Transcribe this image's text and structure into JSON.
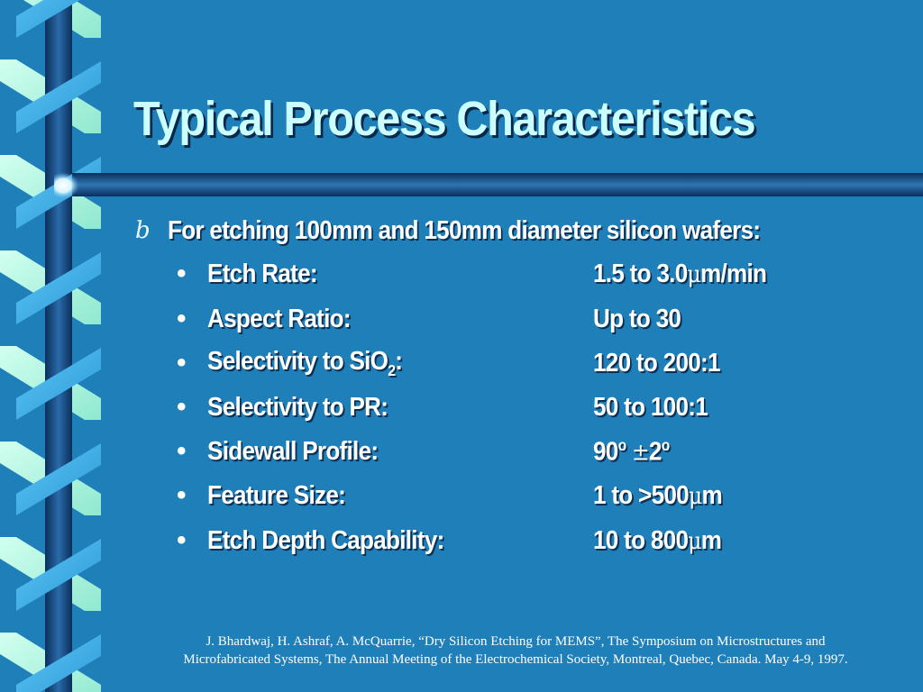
{
  "slide": {
    "title": "Typical Process Characteristics",
    "lead_bullet_symbol": "b",
    "lead_text": "For etching 100mm and 150mm diameter silicon wafers:",
    "bullet_symbol": "•",
    "items": [
      {
        "label": "Etch Rate:",
        "value": "1.5 to 3.0",
        "unit_symbol": "μ",
        "unit_tail": "m/min"
      },
      {
        "label": "Aspect Ratio:",
        "value": "Up to 30"
      },
      {
        "label_main": "Selectivity to SiO",
        "label_sub": "2",
        "label_tail": ":",
        "value": "120 to 200:1"
      },
      {
        "label": "Selectivity to PR:",
        "value": "50 to 100:1"
      },
      {
        "label": "Sidewall Profile:",
        "value_a": "90",
        "value_a_sup": "o",
        "pm_symbol": "±",
        "value_b": "2",
        "value_b_sup": "o"
      },
      {
        "label": "Feature Size:",
        "value": "1 to >500",
        "unit_symbol": "μ",
        "unit_tail": "m"
      },
      {
        "label": "Etch Depth Capability:",
        "value": "10 to 800",
        "unit_symbol": "μ",
        "unit_tail": "m"
      }
    ],
    "reference_line1": "J. Bhardwaj, H. Ashraf, A. McQuarrie, “Dry Silicon Etching for MEMS”, The Symposium on Microstructures and",
    "reference_line2": "Microfabricated Systems, The Annual Meeting of the Electrochemical Society, Montreal, Quebec, Canada. May 4-9, 1997."
  },
  "colors": {
    "background": "#1f7fb8",
    "title": "#ccffff",
    "ribbon_light": "#b9f7e3",
    "ribbon_blue": "#3fb3ec",
    "rod": "#0a3c6e"
  }
}
